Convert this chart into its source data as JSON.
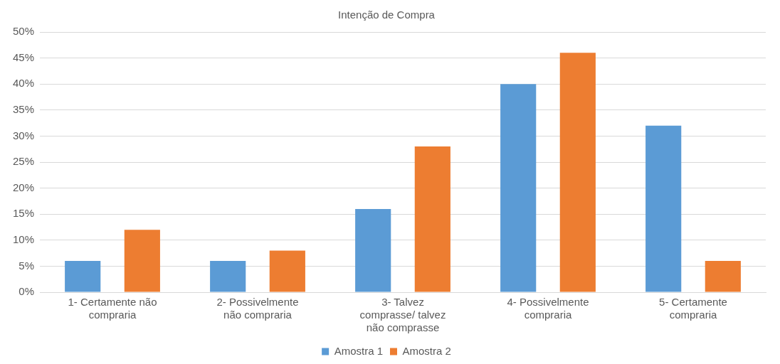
{
  "chart_data": {
    "type": "bar",
    "title": "Intenção de Compra",
    "categories": [
      "1- Certamente não compraria",
      "2- Possivelmente não compraria",
      "3- Talvez comprasse/ talvez não comprasse",
      "4- Possivelmente compraria",
      "5- Certamente compraria"
    ],
    "series": [
      {
        "name": "Amostra 1",
        "color": "#5b9bd5",
        "values": [
          6,
          6,
          16,
          40,
          32
        ]
      },
      {
        "name": "Amostra 2",
        "color": "#ed7d31",
        "values": [
          12,
          8,
          28,
          46,
          6
        ]
      }
    ],
    "ylim": [
      0,
      50
    ],
    "yticks": [
      {
        "value": 0,
        "label": "0%"
      },
      {
        "value": 5,
        "label": "5%"
      },
      {
        "value": 10,
        "label": "10%"
      },
      {
        "value": 15,
        "label": "15%"
      },
      {
        "value": 20,
        "label": "20%"
      },
      {
        "value": 25,
        "label": "25%"
      },
      {
        "value": 30,
        "label": "30%"
      },
      {
        "value": 35,
        "label": "35%"
      },
      {
        "value": 40,
        "label": "40%"
      },
      {
        "value": 45,
        "label": "45%"
      },
      {
        "value": 50,
        "label": "50%"
      }
    ],
    "grid": "y",
    "legend": "bottom"
  }
}
